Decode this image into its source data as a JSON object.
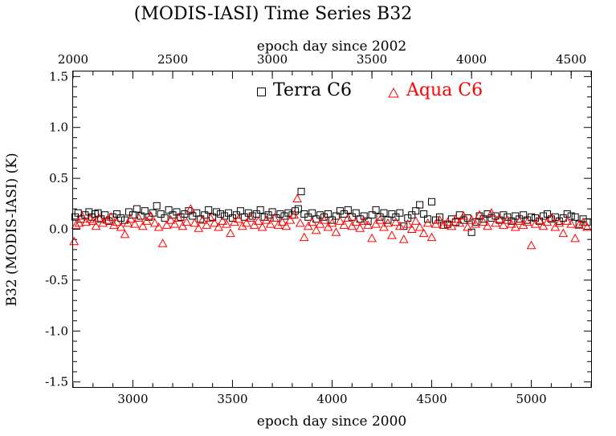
{
  "chart_data": {
    "type": "scatter",
    "title": "(MODIS-IASI) Time Series B32",
    "xlabel": "epoch day since 2000",
    "x2label": "epoch day since 2002",
    "ylabel": "B32 (MODIS-IASI) (K)",
    "xlim": [
      2700,
      5300
    ],
    "x2lim": [
      2000,
      4600
    ],
    "ylim": [
      -1.55,
      1.55
    ],
    "xticks": [
      3000,
      3500,
      4000,
      4500,
      5000
    ],
    "x2ticks": [
      2000,
      2500,
      3000,
      3500,
      4000,
      4500
    ],
    "yticks": [
      1.5,
      1.0,
      0.5,
      0.0,
      -0.5,
      -1.0,
      -1.5
    ],
    "ytick_labels": [
      "1.5",
      "1.0",
      "0.5",
      "0.0",
      "-0.5",
      "-1.0",
      "-1.5"
    ],
    "xtick_labels": [
      "3000",
      "3500",
      "4000",
      "4500",
      "5000"
    ],
    "x2tick_labels": [
      "2000",
      "2500",
      "3000",
      "3500",
      "4000",
      "4500"
    ],
    "grid": false,
    "legend": "top-right",
    "series": [
      {
        "name": "Terra C6",
        "marker": "square",
        "color": "#000000",
        "points": [
          [
            2710,
            0.12
          ],
          [
            2725,
            0.16
          ],
          [
            2740,
            0.1
          ],
          [
            2760,
            0.14
          ],
          [
            2780,
            0.17
          ],
          [
            2795,
            0.12
          ],
          [
            2810,
            0.15
          ],
          [
            2825,
            0.16
          ],
          [
            2840,
            0.1
          ],
          [
            2860,
            0.14
          ],
          [
            2880,
            0.08
          ],
          [
            2900,
            0.12
          ],
          [
            2920,
            0.15
          ],
          [
            2940,
            0.11
          ],
          [
            2960,
            0.09
          ],
          [
            2980,
            0.17
          ],
          [
            3000,
            0.14
          ],
          [
            3020,
            0.2
          ],
          [
            3040,
            0.13
          ],
          [
            3060,
            0.18
          ],
          [
            3080,
            0.12
          ],
          [
            3100,
            0.16
          ],
          [
            3120,
            0.23
          ],
          [
            3140,
            0.15
          ],
          [
            3160,
            0.11
          ],
          [
            3180,
            0.19
          ],
          [
            3200,
            0.14
          ],
          [
            3220,
            0.17
          ],
          [
            3240,
            0.12
          ],
          [
            3260,
            0.15
          ],
          [
            3280,
            0.18
          ],
          [
            3300,
            0.13
          ],
          [
            3320,
            0.16
          ],
          [
            3340,
            0.1
          ],
          [
            3360,
            0.14
          ],
          [
            3380,
            0.19
          ],
          [
            3400,
            0.12
          ],
          [
            3420,
            0.17
          ],
          [
            3440,
            0.15
          ],
          [
            3460,
            0.13
          ],
          [
            3480,
            0.16
          ],
          [
            3500,
            0.11
          ],
          [
            3520,
            0.14
          ],
          [
            3540,
            0.18
          ],
          [
            3560,
            0.12
          ],
          [
            3580,
            0.16
          ],
          [
            3600,
            0.13
          ],
          [
            3620,
            0.15
          ],
          [
            3640,
            0.19
          ],
          [
            3660,
            0.12
          ],
          [
            3680,
            0.14
          ],
          [
            3700,
            0.17
          ],
          [
            3720,
            0.11
          ],
          [
            3740,
            0.15
          ],
          [
            3760,
            0.13
          ],
          [
            3780,
            0.16
          ],
          [
            3800,
            0.14
          ],
          [
            3815,
            0.18
          ],
          [
            3830,
            0.2
          ],
          [
            3845,
            0.37
          ],
          [
            3860,
            0.15
          ],
          [
            3880,
            0.12
          ],
          [
            3900,
            0.16
          ],
          [
            3920,
            0.1
          ],
          [
            3940,
            0.14
          ],
          [
            3960,
            0.12
          ],
          [
            3980,
            0.15
          ],
          [
            4000,
            0.09
          ],
          [
            4020,
            0.13
          ],
          [
            4040,
            0.18
          ],
          [
            4060,
            0.15
          ],
          [
            4080,
            0.19
          ],
          [
            4100,
            0.12
          ],
          [
            4120,
            0.16
          ],
          [
            4140,
            0.1
          ],
          [
            4160,
            0.13
          ],
          [
            4180,
            0.08
          ],
          [
            4200,
            0.14
          ],
          [
            4220,
            0.19
          ],
          [
            4240,
            0.12
          ],
          [
            4260,
            0.16
          ],
          [
            4280,
            0.09
          ],
          [
            4300,
            0.15
          ],
          [
            4320,
            0.12
          ],
          [
            4340,
            0.16
          ],
          [
            4360,
            0.03
          ],
          [
            4380,
            0.11
          ],
          [
            4400,
            0.14
          ],
          [
            4420,
            0.18
          ],
          [
            4440,
            0.24
          ],
          [
            4460,
            0.15
          ],
          [
            4480,
            0.1
          ],
          [
            4500,
            0.27
          ],
          [
            4520,
            0.09
          ],
          [
            4540,
            0.12
          ],
          [
            4560,
            0.04
          ],
          [
            4580,
            0.05
          ],
          [
            4600,
            0.1
          ],
          [
            4620,
            0.07
          ],
          [
            4640,
            0.14
          ],
          [
            4660,
            0.09
          ],
          [
            4680,
            0.11
          ],
          [
            4700,
            -0.03
          ],
          [
            4720,
            0.07
          ],
          [
            4740,
            0.13
          ],
          [
            4760,
            0.1
          ],
          [
            4780,
            0.15
          ],
          [
            4800,
            0.11
          ],
          [
            4820,
            0.13
          ],
          [
            4840,
            0.09
          ],
          [
            4860,
            0.14
          ],
          [
            4880,
            0.12
          ],
          [
            4900,
            0.08
          ],
          [
            4920,
            0.13
          ],
          [
            4940,
            0.1
          ],
          [
            4960,
            0.14
          ],
          [
            4980,
            0.09
          ],
          [
            5000,
            0.12
          ],
          [
            5020,
            0.11
          ],
          [
            5040,
            0.08
          ],
          [
            5060,
            0.13
          ],
          [
            5080,
            0.15
          ],
          [
            5100,
            0.1
          ],
          [
            5120,
            0.12
          ],
          [
            5140,
            0.08
          ],
          [
            5160,
            0.11
          ],
          [
            5180,
            0.15
          ],
          [
            5200,
            0.13
          ],
          [
            5220,
            0.12
          ],
          [
            5240,
            0.05
          ],
          [
            5260,
            0.1
          ],
          [
            5280,
            0.07
          ]
        ]
      },
      {
        "name": "Aqua C6",
        "marker": "triangle",
        "color": "#ff0000",
        "points": [
          [
            2705,
            -0.12
          ],
          [
            2715,
            0.04
          ],
          [
            2730,
            0.06
          ],
          [
            2745,
            0.13
          ],
          [
            2765,
            0.07
          ],
          [
            2785,
            0.1
          ],
          [
            2800,
            0.08
          ],
          [
            2815,
            0.03
          ],
          [
            2830,
            0.11
          ],
          [
            2850,
            0.06
          ],
          [
            2870,
            0.09
          ],
          [
            2890,
            0.12
          ],
          [
            2905,
            0.04
          ],
          [
            2920,
            0.07
          ],
          [
            2940,
            0.02
          ],
          [
            2960,
            -0.05
          ],
          [
            2975,
            0.06
          ],
          [
            2990,
            0.1
          ],
          [
            3010,
            0.05
          ],
          [
            3030,
            0.11
          ],
          [
            3050,
            0.03
          ],
          [
            3070,
            0.08
          ],
          [
            3090,
            0.13
          ],
          [
            3110,
            0.06
          ],
          [
            3130,
            0.02
          ],
          [
            3150,
            -0.14
          ],
          [
            3170,
            0.04
          ],
          [
            3190,
            0.09
          ],
          [
            3210,
            0.05
          ],
          [
            3230,
            0.11
          ],
          [
            3250,
            0.03
          ],
          [
            3270,
            0.07
          ],
          [
            3290,
            0.2
          ],
          [
            3310,
            0.06
          ],
          [
            3330,
            0.01
          ],
          [
            3350,
            0.09
          ],
          [
            3370,
            0.04
          ],
          [
            3390,
            0.11
          ],
          [
            3410,
            0.06
          ],
          [
            3430,
            0.02
          ],
          [
            3450,
            0.08
          ],
          [
            3470,
            0.05
          ],
          [
            3490,
            -0.04
          ],
          [
            3510,
            0.07
          ],
          [
            3530,
            0.1
          ],
          [
            3550,
            0.03
          ],
          [
            3570,
            0.06
          ],
          [
            3590,
            0.11
          ],
          [
            3610,
            0.04
          ],
          [
            3630,
            0.08
          ],
          [
            3650,
            0.02
          ],
          [
            3670,
            0.09
          ],
          [
            3690,
            0.05
          ],
          [
            3710,
            0.11
          ],
          [
            3730,
            0.04
          ],
          [
            3750,
            0.07
          ],
          [
            3770,
            0.03
          ],
          [
            3790,
            0.09
          ],
          [
            3810,
            0.14
          ],
          [
            3825,
            0.3
          ],
          [
            3840,
            0.06
          ],
          [
            3860,
            -0.08
          ],
          [
            3880,
            0.03
          ],
          [
            3900,
            0.07
          ],
          [
            3920,
            -0.01
          ],
          [
            3940,
            0.05
          ],
          [
            3960,
            0.09
          ],
          [
            3980,
            0.02
          ],
          [
            4000,
            0.06
          ],
          [
            4020,
            -0.03
          ],
          [
            4040,
            0.08
          ],
          [
            4060,
            0.04
          ],
          [
            4080,
            0.11
          ],
          [
            4100,
            0.03
          ],
          [
            4120,
            0.07
          ],
          [
            4140,
            0.01
          ],
          [
            4160,
            0.08
          ],
          [
            4180,
            0.04
          ],
          [
            4200,
            -0.09
          ],
          [
            4220,
            0.05
          ],
          [
            4240,
            0.09
          ],
          [
            4260,
            0.02
          ],
          [
            4280,
            0.06
          ],
          [
            4300,
            -0.06
          ],
          [
            4320,
            0.07
          ],
          [
            4340,
            0.03
          ],
          [
            4360,
            -0.1
          ],
          [
            4380,
            0.05
          ],
          [
            4400,
            0.0
          ],
          [
            4420,
            0.08
          ],
          [
            4440,
            0.02
          ],
          [
            4460,
            -0.04
          ],
          [
            4480,
            0.06
          ],
          [
            4500,
            -0.08
          ],
          [
            4520,
            0.05
          ],
          [
            4540,
            0.09
          ],
          [
            4560,
            0.04
          ],
          [
            4580,
            0.07
          ],
          [
            4600,
            0.03
          ],
          [
            4620,
            0.1
          ],
          [
            4640,
            0.06
          ],
          [
            4660,
            0.13
          ],
          [
            4680,
            0.02
          ],
          [
            4700,
            0.09
          ],
          [
            4720,
            0.05
          ],
          [
            4740,
            0.14
          ],
          [
            4760,
            0.07
          ],
          [
            4780,
            0.03
          ],
          [
            4800,
            0.16
          ],
          [
            4820,
            0.06
          ],
          [
            4840,
            0.1
          ],
          [
            4860,
            0.04
          ],
          [
            4880,
            0.09
          ],
          [
            4900,
            0.05
          ],
          [
            4920,
            0.02
          ],
          [
            4940,
            0.08
          ],
          [
            4960,
            0.04
          ],
          [
            4980,
            0.07
          ],
          [
            5000,
            -0.16
          ],
          [
            5020,
            0.05
          ],
          [
            5040,
            0.09
          ],
          [
            5060,
            0.03
          ],
          [
            5080,
            0.07
          ],
          [
            5100,
            0.11
          ],
          [
            5120,
            0.02
          ],
          [
            5140,
            0.06
          ],
          [
            5160,
            -0.04
          ],
          [
            5180,
            0.08
          ],
          [
            5200,
            0.05
          ],
          [
            5220,
            -0.09
          ],
          [
            5240,
            0.04
          ],
          [
            5260,
            0.07
          ],
          [
            5280,
            0.02
          ]
        ]
      }
    ]
  }
}
